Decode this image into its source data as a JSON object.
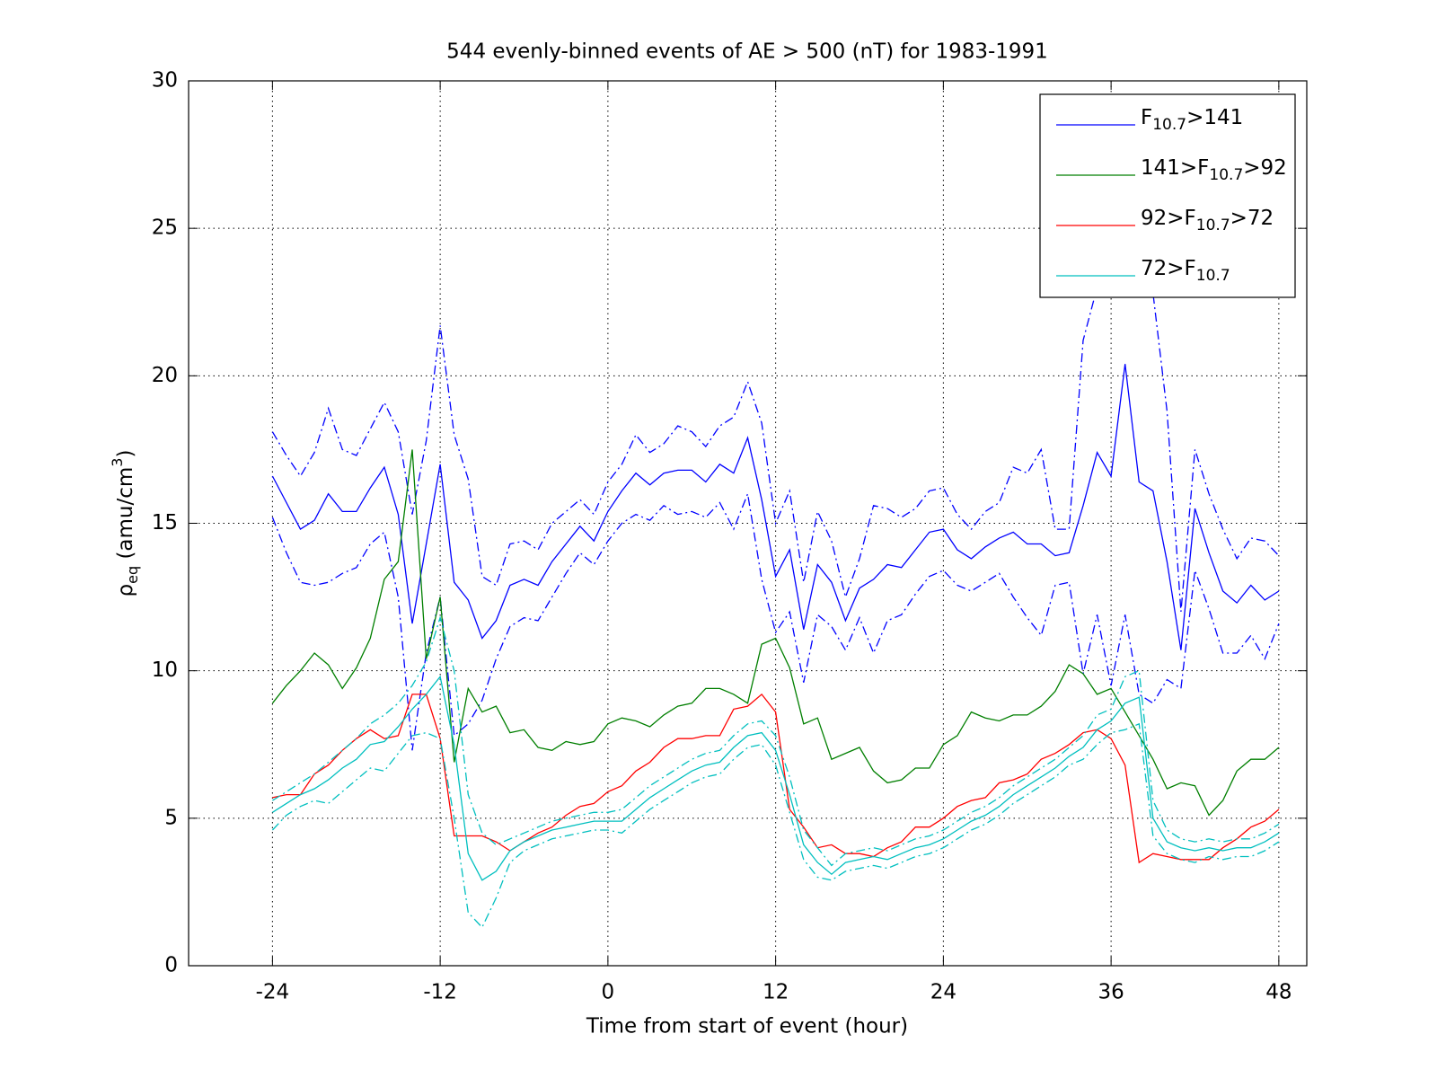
{
  "chart_data": {
    "type": "line",
    "title": "544 evenly-binned events of AE > 500 (nT) for 1983-1991",
    "xlabel": "Time from start of event (hour)",
    "ylabel": [
      {
        "text": "ρ"
      },
      {
        "text": "eq",
        "sub": true
      },
      {
        "text": " (amu/cm"
      },
      {
        "text": "3",
        "sup": true
      },
      {
        "text": ")"
      }
    ],
    "xlim": [
      -30,
      50
    ],
    "ylim": [
      0,
      30
    ],
    "xticks": [
      -24,
      -12,
      0,
      12,
      24,
      36,
      48
    ],
    "yticks": [
      0,
      5,
      10,
      15,
      20,
      25,
      30
    ],
    "grid": true,
    "legend": "upper right",
    "x": [
      -24,
      -23,
      -22,
      -21,
      -20,
      -19,
      -18,
      -17,
      -16,
      -15,
      -14,
      -13,
      -12,
      -11,
      -10,
      -9,
      -8,
      -7,
      -6,
      -5,
      -4,
      -3,
      -2,
      -1,
      0,
      1,
      2,
      3,
      4,
      5,
      6,
      7,
      8,
      9,
      10,
      11,
      12,
      13,
      14,
      15,
      16,
      17,
      18,
      19,
      20,
      21,
      22,
      23,
      24,
      25,
      26,
      27,
      28,
      29,
      30,
      31,
      32,
      33,
      34,
      35,
      36,
      37,
      38,
      39,
      40,
      41,
      42,
      43,
      44,
      45,
      46,
      47,
      48
    ],
    "series": [
      {
        "name": [
          {
            "text": "F"
          },
          {
            "text": "10.7",
            "sub": true
          },
          {
            "text": ">141"
          }
        ],
        "color": "#0000ff",
        "values": [
          16.6,
          15.7,
          14.8,
          15.1,
          16.0,
          15.4,
          15.4,
          16.2,
          16.9,
          15.3,
          11.6,
          14.3,
          17.0,
          13.0,
          12.4,
          11.1,
          11.7,
          12.9,
          13.1,
          12.9,
          13.7,
          14.3,
          14.9,
          14.4,
          15.4,
          16.1,
          16.7,
          16.3,
          16.7,
          16.8,
          16.8,
          16.4,
          17.0,
          16.7,
          17.9,
          15.8,
          13.2,
          14.1,
          11.4,
          13.6,
          13.0,
          11.7,
          12.8,
          13.1,
          13.6,
          13.5,
          14.1,
          14.7,
          14.8,
          14.1,
          13.8,
          14.2,
          14.5,
          14.7,
          14.3,
          14.3,
          13.9,
          14.0,
          15.6,
          17.4,
          16.6,
          20.4,
          16.4,
          16.1,
          13.7,
          10.7,
          15.5,
          14.0,
          12.7,
          12.3,
          12.9,
          12.4,
          12.7
        ],
        "upper": [
          18.1,
          17.3,
          16.6,
          17.4,
          18.9,
          17.5,
          17.3,
          18.2,
          19.1,
          18.1,
          15.3,
          17.8,
          21.7,
          18.0,
          16.5,
          13.2,
          12.9,
          14.3,
          14.4,
          14.1,
          15.0,
          15.4,
          15.8,
          15.3,
          16.4,
          17.0,
          18.0,
          17.4,
          17.7,
          18.3,
          18.1,
          17.6,
          18.3,
          18.6,
          19.8,
          18.4,
          15.0,
          16.1,
          13.0,
          15.4,
          14.4,
          12.5,
          13.8,
          15.6,
          15.5,
          15.2,
          15.5,
          16.1,
          16.2,
          15.3,
          14.8,
          15.4,
          15.7,
          16.9,
          16.7,
          17.5,
          14.8,
          14.8,
          21.2,
          23.0,
          23.5,
          25.0,
          24.0,
          22.8,
          18.8,
          12.0,
          17.5,
          16.0,
          14.8,
          13.8,
          14.5,
          14.4,
          13.9
        ],
        "lower": [
          15.2,
          14.0,
          13.0,
          12.9,
          13.0,
          13.3,
          13.5,
          14.3,
          14.7,
          12.5,
          7.3,
          10.6,
          12.5,
          7.8,
          8.2,
          9.0,
          10.4,
          11.5,
          11.8,
          11.7,
          12.5,
          13.3,
          14.0,
          13.6,
          14.4,
          15.0,
          15.3,
          15.1,
          15.6,
          15.3,
          15.4,
          15.2,
          15.7,
          14.8,
          16.0,
          13.1,
          11.3,
          12.0,
          9.6,
          11.9,
          11.5,
          10.7,
          11.8,
          10.6,
          11.7,
          11.9,
          12.6,
          13.2,
          13.4,
          12.9,
          12.7,
          13.0,
          13.3,
          12.5,
          11.8,
          11.2,
          12.9,
          13.0,
          9.9,
          11.9,
          9.5,
          11.9,
          9.2,
          8.9,
          9.7,
          9.4,
          13.4,
          12.1,
          10.6,
          10.6,
          11.2,
          10.4,
          11.6
        ]
      },
      {
        "name": [
          {
            "text": "141>F"
          },
          {
            "text": "10.7",
            "sub": true
          },
          {
            "text": ">92"
          }
        ],
        "color": "#007f00",
        "values": [
          8.9,
          9.5,
          10.0,
          10.6,
          10.2,
          9.4,
          10.1,
          11.1,
          13.1,
          13.7,
          17.5,
          10.4,
          12.5,
          6.9,
          9.4,
          8.6,
          8.8,
          7.9,
          8.0,
          7.4,
          7.3,
          7.6,
          7.5,
          7.6,
          8.2,
          8.4,
          8.3,
          8.1,
          8.5,
          8.8,
          8.9,
          9.4,
          9.4,
          9.2,
          8.9,
          10.9,
          11.1,
          10.1,
          8.2,
          8.4,
          7.0,
          7.2,
          7.4,
          6.6,
          6.2,
          6.3,
          6.7,
          6.7,
          7.5,
          7.8,
          8.6,
          8.4,
          8.3,
          8.5,
          8.5,
          8.8,
          9.3,
          10.2,
          9.9,
          9.2,
          9.4,
          8.6,
          7.8,
          7.0,
          6.0,
          6.2,
          6.1,
          5.1,
          5.6,
          6.6,
          7.0,
          7.0,
          7.4
        ]
      },
      {
        "name": [
          {
            "text": "92>F"
          },
          {
            "text": "10.7",
            "sub": true
          },
          {
            "text": ">72"
          }
        ],
        "color": "#ff0000",
        "values": [
          5.7,
          5.8,
          5.8,
          6.5,
          6.8,
          7.3,
          7.7,
          8.0,
          7.7,
          7.8,
          9.2,
          9.2,
          7.7,
          4.4,
          4.4,
          4.4,
          4.2,
          3.9,
          4.2,
          4.5,
          4.7,
          5.1,
          5.4,
          5.5,
          5.9,
          6.1,
          6.6,
          6.9,
          7.4,
          7.7,
          7.7,
          7.8,
          7.8,
          8.7,
          8.8,
          9.2,
          8.6,
          5.3,
          4.7,
          4.0,
          4.1,
          3.8,
          3.8,
          3.7,
          4.0,
          4.2,
          4.7,
          4.7,
          5.0,
          5.4,
          5.6,
          5.7,
          6.2,
          6.3,
          6.5,
          7.0,
          7.2,
          7.5,
          7.9,
          8.0,
          7.7,
          6.8,
          3.5,
          3.8,
          3.7,
          3.6,
          3.6,
          3.6,
          4.0,
          4.3,
          4.7,
          4.9,
          5.3
        ]
      },
      {
        "name": [
          {
            "text": "72>F"
          },
          {
            "text": "10.7",
            "sub": true
          }
        ],
        "color": "#00bfbf",
        "values": [
          5.2,
          5.5,
          5.8,
          6.0,
          6.3,
          6.7,
          7.0,
          7.5,
          7.6,
          8.1,
          8.7,
          9.2,
          9.8,
          7.5,
          3.8,
          2.9,
          3.2,
          3.9,
          4.2,
          4.4,
          4.6,
          4.7,
          4.8,
          4.9,
          4.9,
          4.9,
          5.3,
          5.7,
          6.0,
          6.3,
          6.6,
          6.8,
          6.9,
          7.4,
          7.8,
          7.9,
          7.3,
          5.8,
          4.1,
          3.5,
          3.1,
          3.5,
          3.6,
          3.7,
          3.6,
          3.8,
          4.0,
          4.1,
          4.3,
          4.6,
          4.9,
          5.1,
          5.4,
          5.8,
          6.1,
          6.4,
          6.7,
          7.1,
          7.4,
          8.0,
          8.3,
          8.9,
          9.1,
          5.0,
          4.2,
          4.0,
          3.9,
          4.0,
          3.9,
          4.0,
          4.0,
          4.2,
          4.5
        ],
        "upper": [
          5.6,
          5.9,
          6.2,
          6.5,
          6.9,
          7.3,
          7.7,
          8.2,
          8.5,
          8.9,
          9.5,
          10.3,
          11.8,
          10.0,
          5.8,
          4.5,
          4.1,
          4.3,
          4.5,
          4.7,
          4.9,
          5.0,
          5.1,
          5.2,
          5.2,
          5.3,
          5.7,
          6.1,
          6.4,
          6.7,
          7.0,
          7.2,
          7.3,
          7.8,
          8.2,
          8.3,
          7.8,
          6.4,
          4.6,
          4.0,
          3.4,
          3.8,
          3.9,
          4.0,
          3.9,
          4.1,
          4.3,
          4.4,
          4.6,
          4.9,
          5.2,
          5.4,
          5.7,
          6.1,
          6.4,
          6.7,
          7.0,
          7.4,
          7.8,
          8.5,
          8.7,
          9.8,
          10.0,
          5.6,
          4.6,
          4.3,
          4.2,
          4.3,
          4.2,
          4.3,
          4.3,
          4.5,
          4.8
        ],
        "lower": [
          4.6,
          5.1,
          5.4,
          5.6,
          5.5,
          5.9,
          6.3,
          6.7,
          6.6,
          7.2,
          7.8,
          7.9,
          7.7,
          5.0,
          1.8,
          1.3,
          2.3,
          3.5,
          3.9,
          4.1,
          4.3,
          4.4,
          4.5,
          4.6,
          4.6,
          4.5,
          4.9,
          5.3,
          5.6,
          5.9,
          6.2,
          6.4,
          6.5,
          7.0,
          7.4,
          7.5,
          6.8,
          5.2,
          3.6,
          3.0,
          2.9,
          3.2,
          3.3,
          3.4,
          3.3,
          3.5,
          3.7,
          3.8,
          4.0,
          4.3,
          4.6,
          4.8,
          5.1,
          5.5,
          5.8,
          6.1,
          6.4,
          6.8,
          7.0,
          7.5,
          7.9,
          8.0,
          8.2,
          4.4,
          3.8,
          3.6,
          3.5,
          3.7,
          3.6,
          3.7,
          3.7,
          3.9,
          4.2
        ]
      }
    ]
  }
}
